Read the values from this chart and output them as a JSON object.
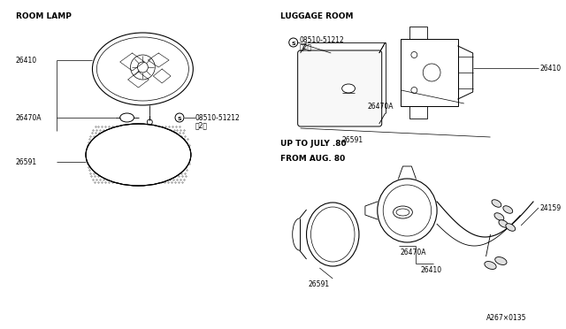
{
  "background_color": "#ffffff",
  "line_color": "#000000",
  "diagram_code": "A267×0135",
  "labels": {
    "room_lamp": "ROOM LAMP",
    "luggage_room": "LUGGAGE ROOM",
    "up_to_july": "UP TO JULY .80",
    "from_aug": "FROM AUG. 80",
    "part_08510": "08510-51212",
    "part_08510_qty": "（2）",
    "p26410": "26410",
    "p26470A": "26470A",
    "p26591": "26591",
    "p24159": "24159"
  },
  "font_size_section": 6.5,
  "font_size_part": 5.5
}
